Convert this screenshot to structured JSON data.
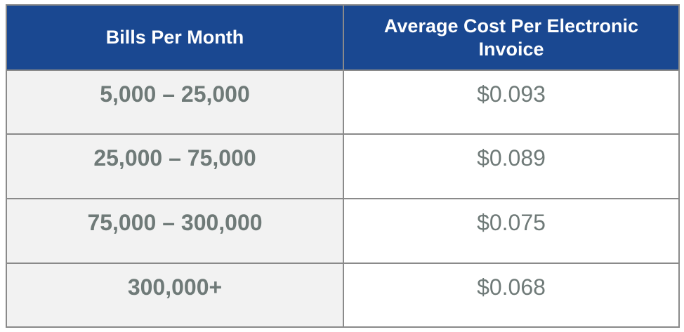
{
  "table": {
    "headers": [
      "Bills Per Month",
      "Average Cost Per Electronic Invoice"
    ],
    "rows": [
      {
        "bills": "5,000 – 25,000",
        "cost": "$0.093"
      },
      {
        "bills": "25,000 – 75,000",
        "cost": "$0.089"
      },
      {
        "bills": "75,000 – 300,000",
        "cost": "$0.075"
      },
      {
        "bills": "300,000+",
        "cost": "$0.068"
      }
    ],
    "colors": {
      "header_bg": "#1a4891",
      "header_text": "#ffffff",
      "body_text": "#6f7a78",
      "first_col_bg": "#f2f2f2",
      "border": "#8a8a8a"
    }
  }
}
